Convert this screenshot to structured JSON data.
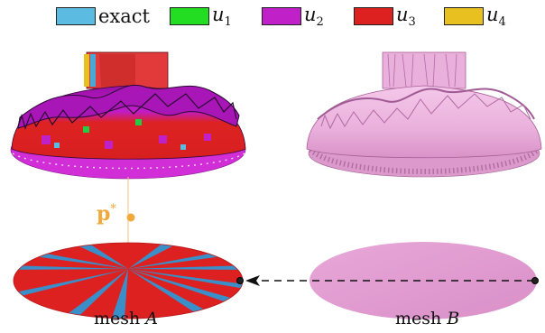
{
  "legend": {
    "items": [
      {
        "label": "exact",
        "math": false,
        "sub": "",
        "color": "#5bbbe0"
      },
      {
        "label": "u",
        "math": true,
        "sub": "1",
        "color": "#22dd22"
      },
      {
        "label": "u",
        "math": true,
        "sub": "2",
        "color": "#c020c8"
      },
      {
        "label": "u",
        "math": true,
        "sub": "3",
        "color": "#dd2020"
      },
      {
        "label": "u",
        "math": true,
        "sub": "4",
        "color": "#e8c020"
      }
    ]
  },
  "point": {
    "label": "p",
    "superscript": "*",
    "color": "#f2a93b"
  },
  "captions": {
    "mesh_a": {
      "prefix": "mesh ",
      "name": "A"
    },
    "mesh_b": {
      "prefix": "mesh ",
      "name": "B"
    }
  },
  "colors": {
    "mesh_a_dome_top": "#b417c4",
    "mesh_a_dome_body": "#dd2222",
    "mesh_a_rim": "#d22ed8",
    "mesh_b_pink": "#e8a6d8",
    "mesh_b_pink_dark": "#cf7fbf",
    "disk_a_fill": "#dd2020",
    "disk_a_stripe": "#3a8fc8",
    "disk_b_fill": "#e8a6d8",
    "arrow": "#111111"
  }
}
